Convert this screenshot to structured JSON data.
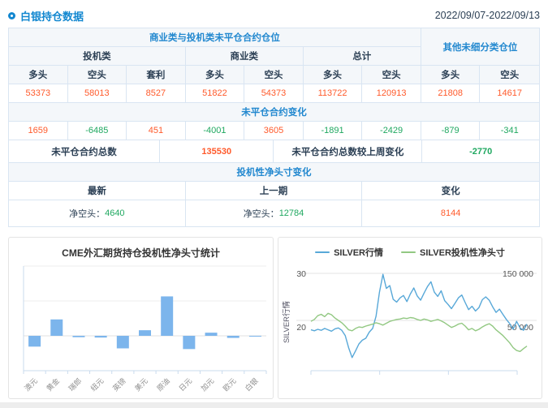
{
  "header": {
    "title": "白银持仓数据",
    "date_range": "2022/09/07-2022/09/13"
  },
  "table": {
    "group_header_main": "商业类与投机类未平仓合约仓位",
    "group_header_other": "其他未细分类仓位",
    "subgroups": {
      "spec": "投机类",
      "comm": "商业类",
      "total": "总计"
    },
    "col_headers": [
      "多头",
      "空头",
      "套利",
      "多头",
      "空头",
      "多头",
      "空头",
      "多头",
      "空头"
    ],
    "positions": [
      "53373",
      "58013",
      "8527",
      "51822",
      "54373",
      "113722",
      "120913",
      "21808",
      "14617"
    ],
    "change_header": "未平仓合约变化",
    "changes": [
      "1659",
      "-6485",
      "451",
      "-4001",
      "3605",
      "-1891",
      "-2429",
      "-879",
      "-341"
    ],
    "totals": {
      "total_label": "未平仓合约总数",
      "total_value": "135530",
      "wow_label": "未平仓合约总数较上周变化",
      "wow_value": "-2770"
    },
    "net_section": {
      "header": "投机性净头寸变化",
      "col_headers": [
        "最新",
        "上一期",
        "变化"
      ],
      "latest_label": "净空头：",
      "latest_value": "4640",
      "prev_label": "净空头：",
      "prev_value": "12784",
      "change_value": "8144"
    }
  },
  "colors": {
    "accent_blue": "#1287d0",
    "header_text_blue": "#2288cf",
    "positive_orange": "#ff5a2b",
    "negative_green": "#1fa860",
    "bar_blue": "#7cb5ec",
    "line_blue": "#58a8d8",
    "line_green": "#92c882"
  },
  "chart_data": [
    {
      "type": "bar",
      "title": "CME外汇期货持仓投机性净头寸统计",
      "categories": [
        "澳元",
        "黄金",
        "瑞郎",
        "纽元",
        "英镑",
        "美元",
        "原油",
        "日元",
        "加元",
        "欧元",
        "白银"
      ],
      "values": [
        -0.31,
        0.47,
        -0.04,
        -0.05,
        -0.36,
        0.16,
        1.13,
        -0.38,
        0.09,
        -0.06,
        -0.02
      ],
      "value_note": "y-axis has no visible tick labels; values estimated in gridline units (1 unit = one gridline step)",
      "ylim": [
        -1,
        2
      ],
      "grid": true,
      "bar_color": "#7cb5ec",
      "xlabel": "",
      "ylabel": ""
    },
    {
      "type": "line",
      "y_axis_label": "SILVER行情",
      "legend_position": "top",
      "left_axis": {
        "ticks": [
          {
            "value": 30,
            "label": "30"
          },
          {
            "value": 20,
            "label": "20"
          }
        ],
        "range": [
          9,
          30
        ]
      },
      "right_axis": {
        "ticks": [
          {
            "value": 150000,
            "label": "150 000"
          },
          {
            "value": 50000,
            "label": "50 000"
          }
        ],
        "range": [
          -60000,
          150000
        ]
      },
      "series": [
        {
          "name": "SILVER行情",
          "color": "#58a8d8",
          "axis": "left",
          "values": [
            18.0,
            17.8,
            18.1,
            17.9,
            18.3,
            18.0,
            17.7,
            18.2,
            18.4,
            17.9,
            16.8,
            14.2,
            12.1,
            13.5,
            15.0,
            15.8,
            16.2,
            17.5,
            18.3,
            20.9,
            26.0,
            29.8,
            26.8,
            27.4,
            24.5,
            23.9,
            24.8,
            25.3,
            24.0,
            25.6,
            26.9,
            25.2,
            24.3,
            25.8,
            27.2,
            28.2,
            26.0,
            25.1,
            26.3,
            24.2,
            23.4,
            22.5,
            23.6,
            24.8,
            25.4,
            23.8,
            22.3,
            23.0,
            22.0,
            22.7,
            24.4,
            25.0,
            24.3,
            22.9,
            21.7,
            22.4,
            21.3,
            20.2,
            19.3,
            18.1,
            19.8,
            18.4,
            17.9,
            19.2
          ]
        },
        {
          "name": "SILVER投机性净头寸",
          "color": "#92c882",
          "axis": "right",
          "values": [
            48000,
            52000,
            60000,
            63000,
            58000,
            65000,
            62000,
            55000,
            50000,
            45000,
            38000,
            30000,
            28000,
            33000,
            36000,
            35000,
            38000,
            40000,
            42000,
            45000,
            43000,
            40000,
            44000,
            48000,
            50000,
            52000,
            53000,
            55000,
            54000,
            56000,
            55000,
            52000,
            50000,
            53000,
            51000,
            48000,
            50000,
            52000,
            49000,
            45000,
            40000,
            35000,
            38000,
            42000,
            44000,
            38000,
            30000,
            33000,
            28000,
            31000,
            36000,
            40000,
            43000,
            38000,
            30000,
            24000,
            18000,
            10000,
            2000,
            -8000,
            -14000,
            -16000,
            -10000,
            -4640
          ]
        }
      ]
    }
  ]
}
